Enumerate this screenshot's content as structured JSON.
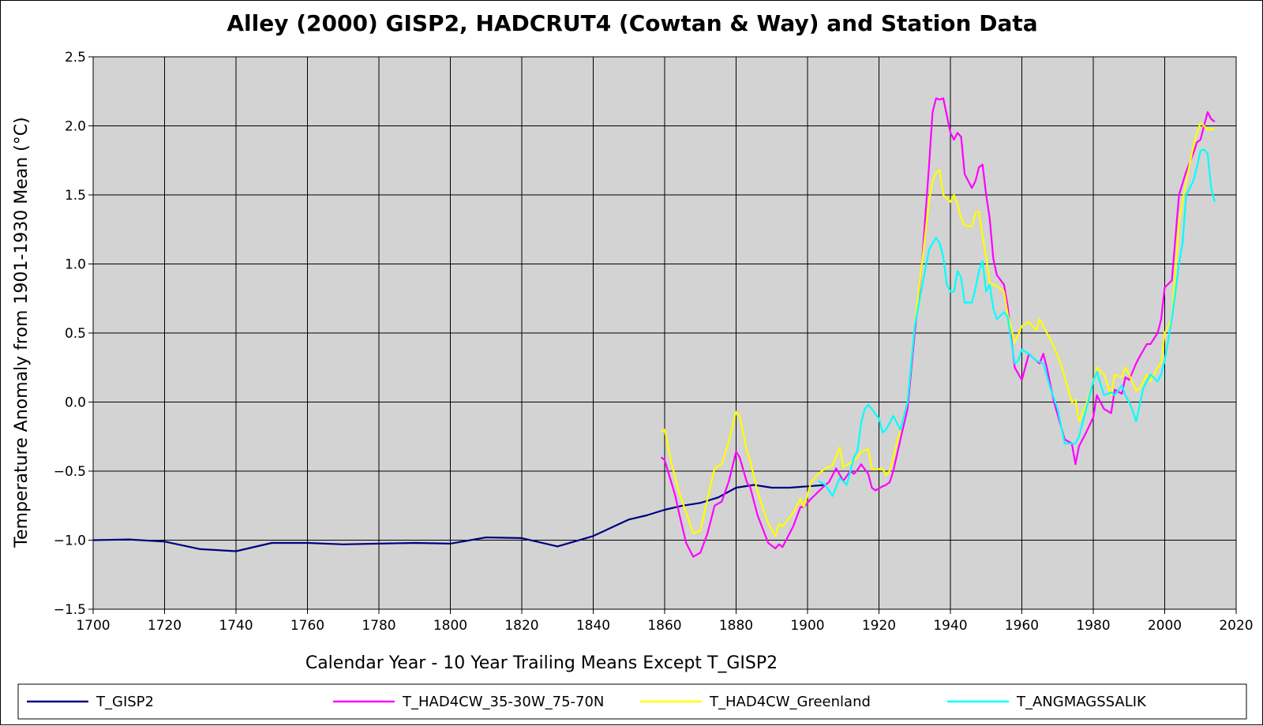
{
  "chart_data": {
    "type": "line",
    "title": "Alley (2000) GISP2, HADCRUT4 (Cowtan & Way) and Station Data",
    "xlabel": "Calendar Year -  10 Year Trailing Means Except T_GISP2",
    "ylabel": "Temperature Anomaly from 1901-1930 Mean (°C)",
    "xlim": [
      1700,
      2020
    ],
    "ylim": [
      -1.5,
      2.5
    ],
    "x_ticks": [
      "1700",
      "1720",
      "1740",
      "1760",
      "1780",
      "1800",
      "1820",
      "1840",
      "1860",
      "1880",
      "1900",
      "1920",
      "1940",
      "1960",
      "1980",
      "2000",
      "2020"
    ],
    "y_ticks": [
      "2.5",
      "2.0",
      "1.5",
      "1.0",
      "0.5",
      "0.0",
      "−0.5",
      "−1.0",
      "−1.5"
    ],
    "grid": true,
    "plot_background": "#d3d3d3",
    "legend_position": "bottom",
    "series": [
      {
        "name": "T_GISP2",
        "color": "#000080",
        "x": [
          1700,
          1710,
          1720,
          1730,
          1740,
          1750,
          1760,
          1770,
          1780,
          1790,
          1800,
          1810,
          1820,
          1830,
          1840,
          1845,
          1850,
          1855,
          1860,
          1865,
          1870,
          1875,
          1880,
          1885,
          1890,
          1895,
          1900,
          1905
        ],
        "y": [
          -1.0,
          -0.995,
          -1.01,
          -1.065,
          -1.08,
          -1.02,
          -1.02,
          -1.03,
          -1.025,
          -1.02,
          -1.025,
          -0.98,
          -0.985,
          -1.045,
          -0.97,
          -0.91,
          -0.85,
          -0.82,
          -0.78,
          -0.75,
          -0.73,
          -0.69,
          -0.62,
          -0.6,
          -0.62,
          -0.62,
          -0.61,
          -0.6
        ]
      },
      {
        "name": "T_HAD4CW_35-30W_75-70N",
        "color": "#ff00ff",
        "x": [
          1859,
          1860,
          1863,
          1864,
          1866,
          1868,
          1870,
          1872,
          1874,
          1876,
          1878,
          1880,
          1881,
          1883,
          1884,
          1886,
          1889,
          1891,
          1892,
          1893,
          1896,
          1898,
          1899,
          1901,
          1905,
          1906,
          1908,
          1910,
          1912,
          1913,
          1914,
          1915,
          1917,
          1918,
          1919,
          1921,
          1922,
          1923,
          1924,
          1926,
          1928,
          1930,
          1932,
          1934,
          1935,
          1936,
          1937,
          1938,
          1940,
          1941,
          1942,
          1943,
          1944,
          1946,
          1947,
          1948,
          1949,
          1950,
          1951,
          1952,
          1953,
          1955,
          1956,
          1958,
          1960,
          1962,
          1964,
          1965,
          1966,
          1967,
          1969,
          1971,
          1972,
          1974,
          1975,
          1976,
          1978,
          1980,
          1981,
          1983,
          1985,
          1986,
          1988,
          1989,
          1990,
          1992,
          1993,
          1995,
          1996,
          1998,
          1999,
          2000,
          2002,
          2004,
          2006,
          2008,
          2009,
          2010,
          2011,
          2012,
          2013,
          2014
        ],
        "y": [
          -0.4,
          -0.42,
          -0.68,
          -0.8,
          -1.02,
          -1.12,
          -1.09,
          -0.95,
          -0.75,
          -0.72,
          -0.57,
          -0.36,
          -0.4,
          -0.58,
          -0.62,
          -0.82,
          -1.02,
          -1.06,
          -1.03,
          -1.05,
          -0.9,
          -0.76,
          -0.76,
          -0.7,
          -0.6,
          -0.58,
          -0.48,
          -0.57,
          -0.5,
          -0.52,
          -0.49,
          -0.45,
          -0.52,
          -0.62,
          -0.64,
          -0.61,
          -0.6,
          -0.58,
          -0.5,
          -0.27,
          -0.05,
          0.5,
          1.0,
          1.7,
          2.1,
          2.2,
          2.19,
          2.2,
          1.95,
          1.9,
          1.95,
          1.92,
          1.65,
          1.55,
          1.6,
          1.7,
          1.72,
          1.5,
          1.33,
          1.04,
          0.92,
          0.85,
          0.7,
          0.25,
          0.16,
          0.35,
          0.3,
          0.28,
          0.35,
          0.25,
          0.0,
          -0.18,
          -0.27,
          -0.3,
          -0.45,
          -0.32,
          -0.22,
          -0.11,
          0.05,
          -0.05,
          -0.08,
          0.09,
          0.06,
          0.18,
          0.16,
          0.28,
          0.33,
          0.42,
          0.42,
          0.5,
          0.6,
          0.83,
          0.88,
          1.5,
          1.67,
          1.8,
          1.88,
          1.9,
          2.0,
          2.1,
          2.05,
          2.03
        ]
      },
      {
        "name": "T_HAD4CW_Greenland",
        "color": "#ffff00",
        "x": [
          1859,
          1860,
          1862,
          1864,
          1866,
          1868,
          1870,
          1872,
          1874,
          1876,
          1878,
          1880,
          1881,
          1883,
          1884,
          1886,
          1889,
          1891,
          1892,
          1893,
          1896,
          1898,
          1899,
          1901,
          1903,
          1905,
          1907,
          1909,
          1910,
          1912,
          1914,
          1915,
          1917,
          1918,
          1919,
          1921,
          1922,
          1923,
          1924,
          1926,
          1928,
          1930,
          1932,
          1934,
          1935,
          1936,
          1937,
          1938,
          1940,
          1941,
          1942,
          1943,
          1944,
          1946,
          1947,
          1948,
          1949,
          1950,
          1951,
          1952,
          1953,
          1955,
          1956,
          1958,
          1960,
          1962,
          1964,
          1965,
          1966,
          1967,
          1969,
          1971,
          1972,
          1974,
          1975,
          1976,
          1978,
          1980,
          1981,
          1983,
          1985,
          1986,
          1988,
          1989,
          1990,
          1992,
          1993,
          1995,
          1996,
          1998,
          1999,
          2000,
          2002,
          2004,
          2006,
          2008,
          2009,
          2010,
          2011,
          2012,
          2013,
          2014
        ],
        "y": [
          -0.21,
          -0.2,
          -0.45,
          -0.65,
          -0.8,
          -0.95,
          -0.93,
          -0.7,
          -0.48,
          -0.45,
          -0.28,
          -0.07,
          -0.1,
          -0.35,
          -0.43,
          -0.65,
          -0.88,
          -0.97,
          -0.88,
          -0.9,
          -0.8,
          -0.7,
          -0.76,
          -0.58,
          -0.52,
          -0.48,
          -0.46,
          -0.33,
          -0.47,
          -0.44,
          -0.4,
          -0.36,
          -0.34,
          -0.48,
          -0.49,
          -0.48,
          -0.53,
          -0.5,
          -0.4,
          -0.2,
          0.0,
          0.55,
          1.0,
          1.45,
          1.6,
          1.66,
          1.68,
          1.5,
          1.45,
          1.5,
          1.43,
          1.33,
          1.28,
          1.27,
          1.37,
          1.38,
          1.2,
          1.05,
          0.86,
          0.85,
          0.84,
          0.8,
          0.64,
          0.43,
          0.55,
          0.58,
          0.52,
          0.6,
          0.55,
          0.5,
          0.4,
          0.27,
          0.18,
          0.0,
          0.02,
          -0.14,
          -0.02,
          0.15,
          0.25,
          0.2,
          0.05,
          0.2,
          0.18,
          0.25,
          0.2,
          0.08,
          0.1,
          0.2,
          0.15,
          0.25,
          0.28,
          0.5,
          0.6,
          1.3,
          1.6,
          1.85,
          1.95,
          2.02,
          2.0,
          1.97,
          1.98,
          1.97
        ]
      },
      {
        "name": "T_ANGMAGSSALIK",
        "color": "#00ffff",
        "x": [
          1903,
          1905,
          1907,
          1909,
          1911,
          1913,
          1914,
          1915,
          1916,
          1917,
          1918,
          1920,
          1921,
          1922,
          1924,
          1926,
          1928,
          1930,
          1932,
          1934,
          1935,
          1936,
          1937,
          1938,
          1939,
          1940,
          1941,
          1942,
          1943,
          1944,
          1946,
          1947,
          1948,
          1949,
          1950,
          1951,
          1952,
          1953,
          1955,
          1956,
          1958,
          1959,
          1960,
          1962,
          1964,
          1966,
          1968,
          1970,
          1972,
          1974,
          1975,
          1976,
          1978,
          1980,
          1981,
          1983,
          1985,
          1986,
          1988,
          1989,
          1990,
          1991,
          1992,
          1994,
          1996,
          1998,
          1999,
          2000,
          2001,
          2002,
          2004,
          2005,
          2006,
          2008,
          2009,
          2010,
          2011,
          2012,
          2013,
          2014
        ],
        "y": [
          -0.57,
          -0.6,
          -0.68,
          -0.55,
          -0.6,
          -0.4,
          -0.35,
          -0.15,
          -0.05,
          -0.02,
          -0.05,
          -0.12,
          -0.22,
          -0.2,
          -0.1,
          -0.2,
          0.0,
          0.55,
          0.83,
          1.1,
          1.15,
          1.19,
          1.15,
          1.05,
          0.85,
          0.8,
          0.8,
          0.95,
          0.9,
          0.72,
          0.72,
          0.82,
          0.95,
          1.02,
          0.8,
          0.85,
          0.68,
          0.6,
          0.65,
          0.62,
          0.28,
          0.3,
          0.38,
          0.35,
          0.3,
          0.28,
          0.1,
          -0.05,
          -0.3,
          -0.3,
          -0.3,
          -0.25,
          -0.05,
          0.15,
          0.22,
          0.05,
          0.07,
          0.05,
          0.12,
          0.05,
          0.0,
          -0.06,
          -0.14,
          0.1,
          0.2,
          0.15,
          0.2,
          0.3,
          0.45,
          0.6,
          1.0,
          1.15,
          1.5,
          1.6,
          1.7,
          1.82,
          1.83,
          1.8,
          1.55,
          1.45
        ]
      }
    ]
  }
}
